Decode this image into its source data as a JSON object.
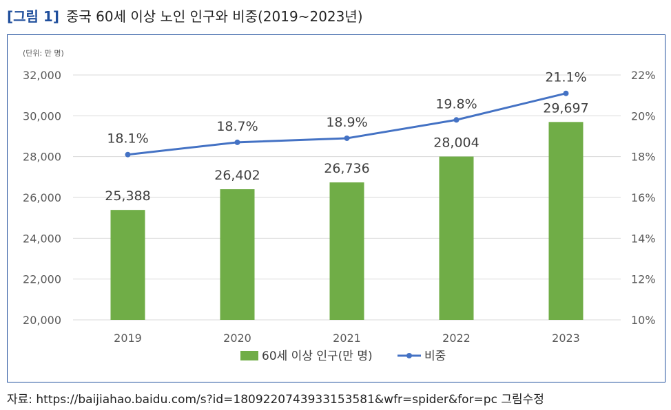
{
  "title": {
    "tag": "[그림 1]",
    "text": "중국 60세 이상 노인 인구와 비중(2019~2023년)"
  },
  "source": "자료: https://baijiahao.baidu.com/s?id=1809220743933153581&wfr=spider&for=pc 그림수정",
  "chart_data": {
    "type": "bar",
    "unit_label": "(단위: 만 명)",
    "categories": [
      "2019",
      "2020",
      "2021",
      "2022",
      "2023"
    ],
    "series": [
      {
        "name": "60세 이상 인구(만 명)",
        "type": "bar",
        "axis": "left",
        "values": [
          25388,
          26402,
          26736,
          28004,
          29697
        ],
        "labels": [
          "25,388",
          "26,402",
          "26,736",
          "28,004",
          "29,697"
        ],
        "color": "#70ad47"
      },
      {
        "name": "비중",
        "type": "line",
        "axis": "right",
        "values": [
          18.1,
          18.7,
          18.9,
          19.8,
          21.1
        ],
        "labels": [
          "18.1%",
          "18.7%",
          "18.9%",
          "19.8%",
          "21.1%"
        ],
        "color": "#4472c4"
      }
    ],
    "y_left": {
      "min": 20000,
      "max": 32000,
      "ticks": [
        "20,000",
        "22,000",
        "24,000",
        "26,000",
        "28,000",
        "30,000",
        "32,000"
      ]
    },
    "y_right": {
      "min": 10,
      "max": 22,
      "ticks": [
        "10%",
        "12%",
        "14%",
        "16%",
        "18%",
        "20%",
        "22%"
      ]
    },
    "grid": true,
    "legend": "bottom"
  }
}
